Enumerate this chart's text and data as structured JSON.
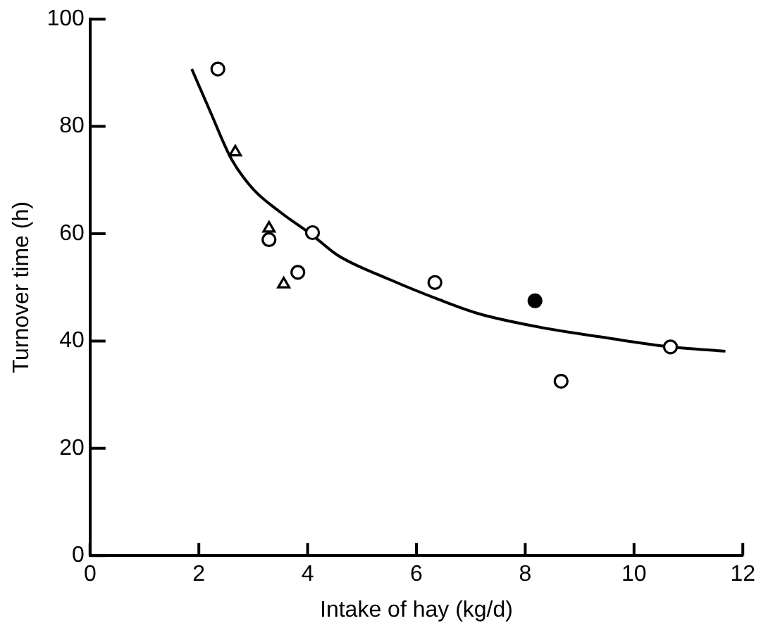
{
  "chart_data": {
    "type": "scatter",
    "xlabel": "Intake of hay (kg/d)",
    "ylabel": "Turnover time (h)",
    "xlim": [
      0,
      12
    ],
    "xticks": [
      0,
      2,
      4,
      6,
      8,
      10,
      12
    ],
    "ylim": [
      0,
      100
    ],
    "yticks": [
      0,
      20,
      40,
      60,
      80,
      100
    ],
    "grid": false,
    "legend": false,
    "series": [
      {
        "marker": "circle",
        "color": "#000000",
        "x": [
          2.35,
          3.29,
          4.09,
          3.82,
          6.34,
          8.66,
          10.67
        ],
        "values": [
          90.7,
          58.9,
          60.2,
          52.8,
          50.9,
          32.5,
          38.9
        ]
      },
      {
        "marker": "triangle",
        "color": "#000000",
        "x": [
          2.67,
          3.29,
          3.56
        ],
        "values": [
          75.2,
          61,
          50.6
        ]
      },
      {
        "marker": "circle",
        "color": "#000000",
        "colors": [
          "#000000"
        ],
        "x": [
          8.18
        ],
        "values": [
          47.5
        ]
      },
      {
        "type": "line",
        "marker": "none",
        "color": "#000000",
        "x": [
          1.87,
          2.2,
          2.6,
          3,
          3.5,
          4.09,
          4.55,
          5.5,
          6.42,
          7.14,
          8.2,
          9.55,
          10.67,
          11.68
        ],
        "values": [
          90.7,
          83,
          73.9,
          68.3,
          64,
          59.7,
          56,
          51.5,
          47.7,
          45.1,
          42.7,
          40.5,
          38.9,
          38.1
        ]
      }
    ]
  }
}
